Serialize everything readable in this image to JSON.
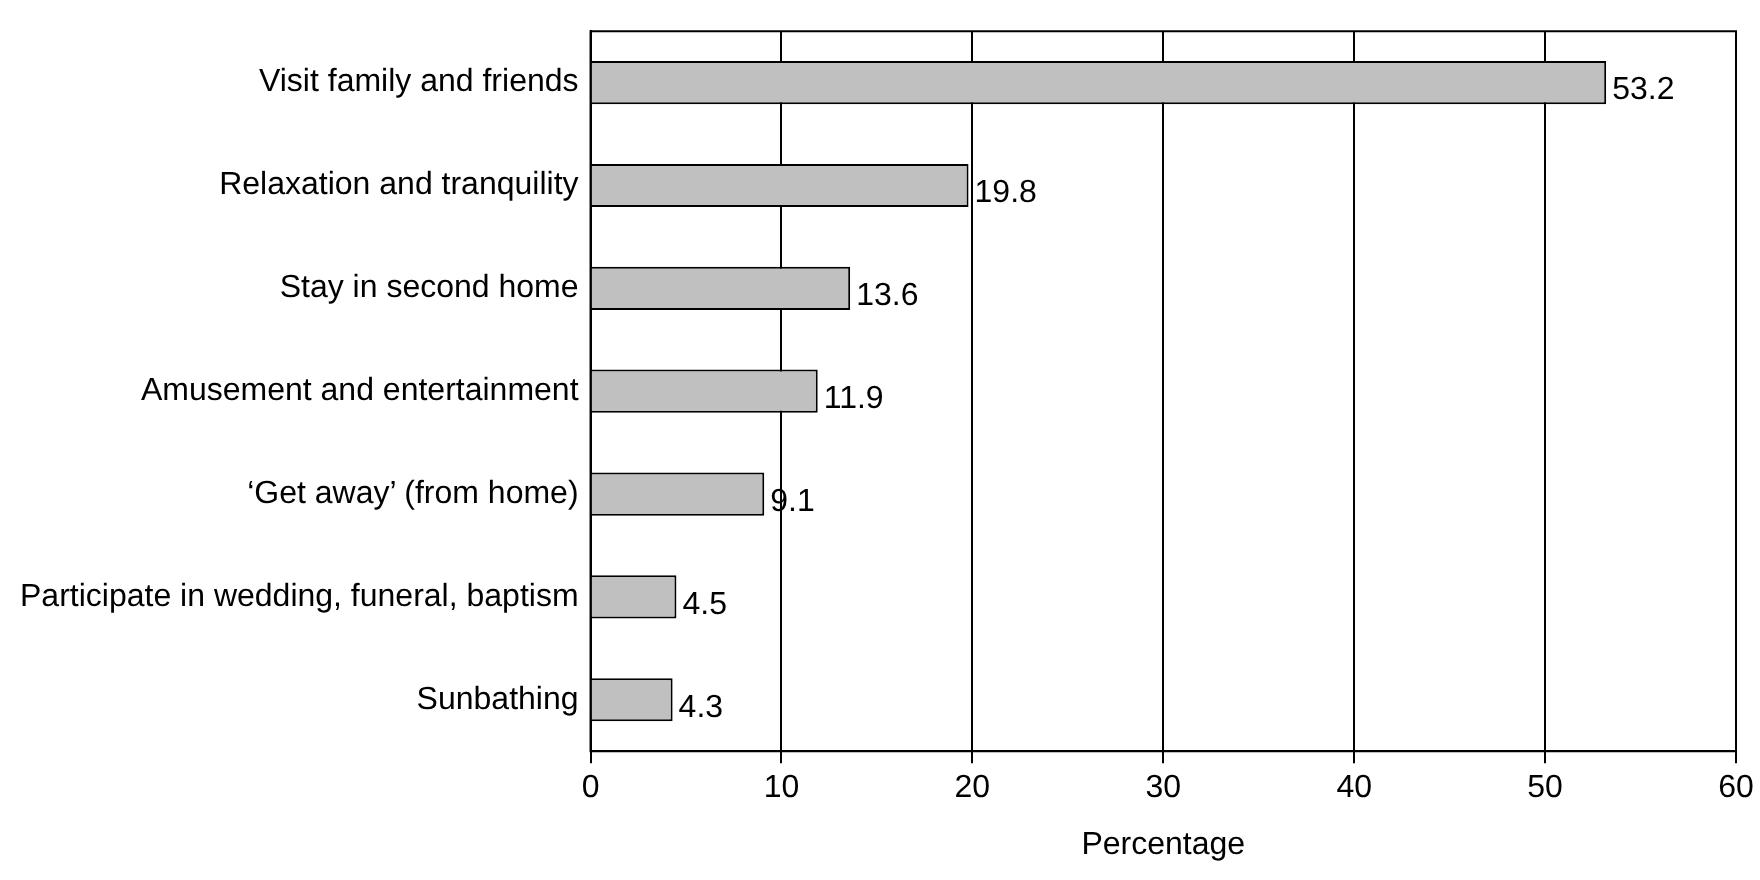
{
  "chart_data": {
    "type": "bar",
    "orientation": "horizontal",
    "xlabel": "Percentage",
    "categories": [
      "Visit family and friends",
      "Relaxation and tranquility",
      "Stay in second home",
      "Amusement and entertainment",
      "‘Get away’ (from home)",
      "Participate in wedding, funeral, baptism",
      "Sunbathing"
    ],
    "values": [
      53.2,
      19.8,
      13.6,
      11.9,
      9.1,
      4.5,
      4.3
    ],
    "color": "#c0c0c0",
    "xlim": [
      0,
      60
    ],
    "xticks": [
      0,
      10,
      20,
      30,
      40,
      50,
      60
    ],
    "grid": "x",
    "data_labels": true,
    "legend": false
  }
}
